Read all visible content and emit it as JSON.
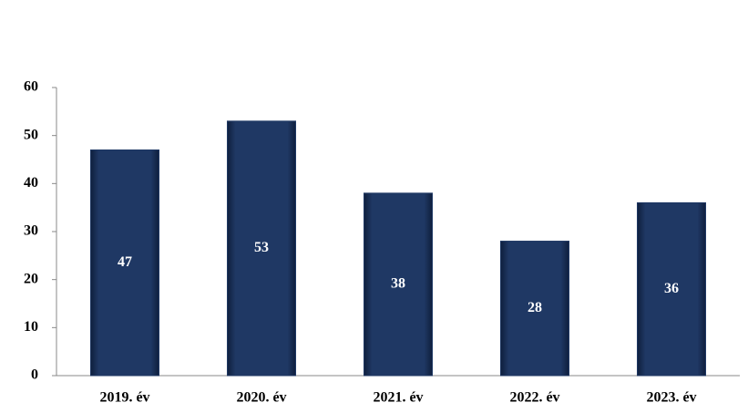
{
  "chart_data": {
    "type": "bar",
    "categories": [
      "2019. év",
      "2020. év",
      "2021. év",
      "2022. év",
      "2023. év"
    ],
    "values": [
      47,
      53,
      38,
      28,
      36
    ],
    "color": "#1f3864",
    "ylim": [
      0,
      60
    ],
    "yticks": [
      0,
      10,
      20,
      30,
      40,
      50,
      60
    ],
    "grid": false
  }
}
